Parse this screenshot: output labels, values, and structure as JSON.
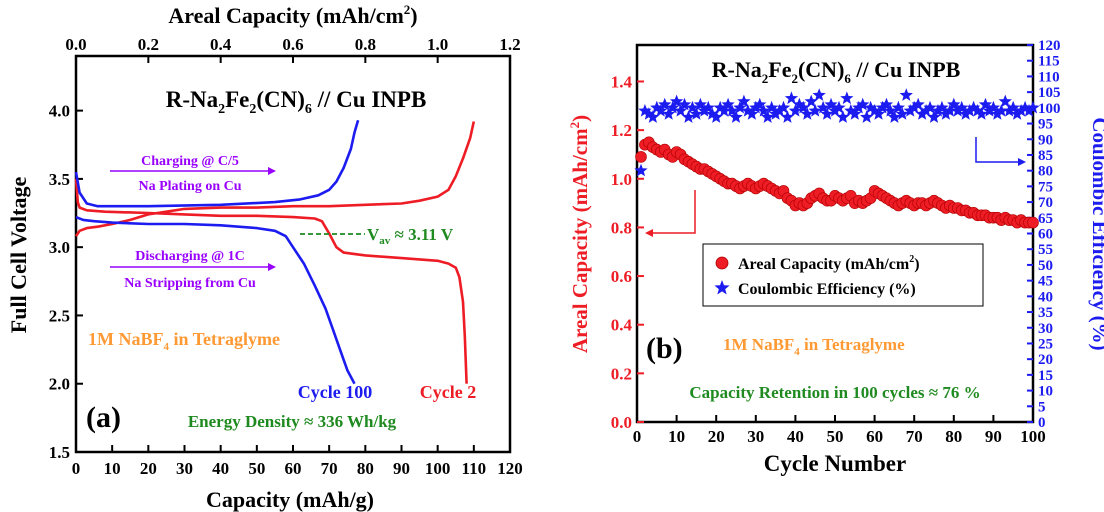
{
  "chart_data": [
    {
      "panel": "(a)",
      "type": "line",
      "title": "R-Na2Fe2(CN)6 // Cu INPB",
      "xlabel": "Capacity (mAh/g)",
      "ylabel": "Full Cell Voltage",
      "x2label": "Areal Capacity (mAh/cm2)",
      "xlim": [
        0,
        120
      ],
      "ylim": [
        1.5,
        4.4
      ],
      "x2lim": [
        0,
        1.2
      ],
      "xticks": [
        0,
        10,
        20,
        30,
        40,
        50,
        60,
        70,
        80,
        90,
        100,
        110,
        120
      ],
      "yticks": [
        "1.5",
        "2.0",
        "2.5",
        "3.0",
        "3.5",
        "4.0"
      ],
      "x2ticks": [
        "0.0",
        "0.2",
        "0.4",
        "0.6",
        "0.8",
        "1.0",
        "1.2"
      ],
      "series": [
        {
          "name": "Cycle 2",
          "color": "#ee1c25",
          "segments": [
            [
              [
                0,
                3.08
              ],
              [
                1,
                3.12
              ],
              [
                3,
                3.14
              ],
              [
                6,
                3.15
              ],
              [
                10,
                3.17
              ],
              [
                15,
                3.2
              ],
              [
                20,
                3.24
              ],
              [
                25,
                3.26
              ],
              [
                30,
                3.28
              ],
              [
                40,
                3.29
              ],
              [
                50,
                3.29
              ],
              [
                60,
                3.3
              ],
              [
                70,
                3.3
              ],
              [
                80,
                3.31
              ],
              [
                90,
                3.32
              ],
              [
                95,
                3.34
              ],
              [
                100,
                3.37
              ],
              [
                103,
                3.42
              ],
              [
                105,
                3.52
              ],
              [
                107,
                3.65
              ],
              [
                109,
                3.8
              ],
              [
                110,
                3.92
              ]
            ],
            [
              [
                0,
                3.5
              ],
              [
                0.5,
                3.33
              ],
              [
                1,
                3.29
              ],
              [
                3,
                3.27
              ],
              [
                8,
                3.26
              ],
              [
                20,
                3.25
              ],
              [
                30,
                3.24
              ],
              [
                40,
                3.23
              ],
              [
                50,
                3.23
              ],
              [
                60,
                3.22
              ],
              [
                66,
                3.21
              ],
              [
                68,
                3.19
              ],
              [
                70,
                3.1
              ],
              [
                72,
                3.0
              ],
              [
                74,
                2.96
              ],
              [
                80,
                2.94
              ],
              [
                90,
                2.92
              ],
              [
                100,
                2.9
              ],
              [
                103,
                2.88
              ],
              [
                105,
                2.85
              ],
              [
                106,
                2.78
              ],
              [
                107,
                2.6
              ],
              [
                107.5,
                2.35
              ],
              [
                108,
                2.0
              ]
            ]
          ]
        },
        {
          "name": "Cycle 100",
          "color": "#1c1cf0",
          "segments": [
            [
              [
                0,
                3.55
              ],
              [
                1,
                3.4
              ],
              [
                3,
                3.32
              ],
              [
                6,
                3.3
              ],
              [
                10,
                3.3
              ],
              [
                20,
                3.3
              ],
              [
                40,
                3.31
              ],
              [
                55,
                3.33
              ],
              [
                62,
                3.35
              ],
              [
                67,
                3.38
              ],
              [
                70,
                3.42
              ],
              [
                72,
                3.48
              ],
              [
                74,
                3.58
              ],
              [
                76,
                3.72
              ],
              [
                77,
                3.84
              ],
              [
                78,
                3.93
              ]
            ],
            [
              [
                0,
                3.22
              ],
              [
                2,
                3.2
              ],
              [
                5,
                3.19
              ],
              [
                10,
                3.18
              ],
              [
                20,
                3.17
              ],
              [
                30,
                3.17
              ],
              [
                40,
                3.16
              ],
              [
                50,
                3.14
              ],
              [
                55,
                3.12
              ],
              [
                58,
                3.08
              ],
              [
                60,
                3.0
              ],
              [
                63,
                2.88
              ],
              [
                66,
                2.72
              ],
              [
                69,
                2.55
              ],
              [
                71,
                2.4
              ],
              [
                73,
                2.25
              ],
              [
                75,
                2.1
              ],
              [
                77,
                2.0
              ]
            ]
          ]
        }
      ],
      "annotations": {
        "charging_line1": "Charging @ C/5",
        "charging_line2": "Na Plating on Cu",
        "discharging_line1": "Discharging @ 1C",
        "discharging_line2": "Na Stripping from Cu",
        "vav_label": "V",
        "vav_sub": "av",
        "vav_value": " ≈ 3.11 V",
        "electrolyte": "1M NaBF",
        "electrolyte_sub": "4",
        "electrolyte_rest": " in Tetraglyme",
        "cycle100_label": "Cycle 100",
        "cycle2_label": "Cycle 2",
        "energy_density": "Energy Density ≈ 336 Wh/kg",
        "panel_label": "(a)"
      },
      "colors": {
        "annotation_purple": "#9900ff",
        "annotation_green": "#1f8a1f",
        "annotation_orange": "#ff9933"
      }
    },
    {
      "panel": "(b)",
      "type": "scatter",
      "title": "R-Na2Fe2(CN)6 // Cu INPB",
      "xlabel": "Cycle Number",
      "ylabel": "Areal Capacity (mAh/cm2)",
      "y2label": "Coulombic Efficiency (%)",
      "xlim": [
        0,
        100
      ],
      "ylim": [
        0,
        1.55
      ],
      "y2lim": [
        0,
        120
      ],
      "xticks": [
        0,
        10,
        20,
        30,
        40,
        50,
        60,
        70,
        80,
        90,
        100
      ],
      "yticks": [
        "0.0",
        "0.2",
        "0.4",
        "0.6",
        "0.8",
        "1.0",
        "1.2",
        "1.4"
      ],
      "y2ticks": [
        0,
        5,
        10,
        15,
        20,
        25,
        30,
        35,
        40,
        45,
        50,
        55,
        60,
        65,
        70,
        75,
        80,
        85,
        90,
        95,
        100,
        105,
        110,
        115,
        120
      ],
      "series": [
        {
          "name": "Areal Capacity (mAh/cm2)",
          "color": "#ee1c25",
          "marker": "circle",
          "x": [
            1,
            2,
            3,
            4,
            5,
            6,
            7,
            8,
            9,
            10,
            11,
            12,
            13,
            14,
            15,
            16,
            17,
            18,
            19,
            20,
            21,
            22,
            23,
            24,
            25,
            26,
            27,
            28,
            29,
            30,
            31,
            32,
            33,
            34,
            35,
            36,
            37,
            38,
            39,
            40,
            41,
            42,
            43,
            44,
            45,
            46,
            47,
            48,
            49,
            50,
            51,
            52,
            53,
            54,
            55,
            56,
            57,
            58,
            59,
            60,
            61,
            62,
            63,
            64,
            65,
            66,
            67,
            68,
            69,
            70,
            71,
            72,
            73,
            74,
            75,
            76,
            77,
            78,
            79,
            80,
            81,
            82,
            83,
            84,
            85,
            86,
            87,
            88,
            89,
            90,
            91,
            92,
            93,
            94,
            95,
            96,
            97,
            98,
            99,
            100
          ],
          "values": [
            1.09,
            1.14,
            1.15,
            1.13,
            1.12,
            1.11,
            1.12,
            1.1,
            1.09,
            1.11,
            1.1,
            1.08,
            1.07,
            1.06,
            1.05,
            1.04,
            1.04,
            1.03,
            1.02,
            1.01,
            1.0,
            0.99,
            0.98,
            0.98,
            0.97,
            0.96,
            0.97,
            0.98,
            0.97,
            0.96,
            0.97,
            0.98,
            0.97,
            0.96,
            0.95,
            0.94,
            0.95,
            0.92,
            0.91,
            0.89,
            0.9,
            0.89,
            0.9,
            0.92,
            0.93,
            0.94,
            0.92,
            0.91,
            0.91,
            0.93,
            0.92,
            0.91,
            0.92,
            0.93,
            0.9,
            0.91,
            0.9,
            0.91,
            0.92,
            0.95,
            0.94,
            0.93,
            0.92,
            0.91,
            0.9,
            0.89,
            0.9,
            0.91,
            0.9,
            0.89,
            0.9,
            0.9,
            0.89,
            0.9,
            0.91,
            0.9,
            0.89,
            0.88,
            0.89,
            0.88,
            0.88,
            0.87,
            0.87,
            0.86,
            0.86,
            0.85,
            0.85,
            0.85,
            0.84,
            0.84,
            0.84,
            0.83,
            0.84,
            0.83,
            0.83,
            0.82,
            0.83,
            0.82,
            0.82,
            0.82
          ]
        },
        {
          "name": "Coulombic Efficiency (%)",
          "color": "#1c1cf0",
          "marker": "star",
          "x": [
            1,
            2,
            3,
            4,
            5,
            6,
            7,
            8,
            9,
            10,
            11,
            12,
            13,
            14,
            15,
            16,
            17,
            18,
            19,
            20,
            21,
            22,
            23,
            24,
            25,
            26,
            27,
            28,
            29,
            30,
            31,
            32,
            33,
            34,
            35,
            36,
            37,
            38,
            39,
            40,
            41,
            42,
            43,
            44,
            45,
            46,
            47,
            48,
            49,
            50,
            51,
            52,
            53,
            54,
            55,
            56,
            57,
            58,
            59,
            60,
            61,
            62,
            63,
            64,
            65,
            66,
            67,
            68,
            69,
            70,
            71,
            72,
            73,
            74,
            75,
            76,
            77,
            78,
            79,
            80,
            81,
            82,
            83,
            84,
            85,
            86,
            87,
            88,
            89,
            90,
            91,
            92,
            93,
            94,
            95,
            96,
            97,
            98,
            99,
            100
          ],
          "values": [
            80,
            99,
            98,
            97,
            100,
            99,
            101,
            98,
            100,
            102,
            99,
            101,
            97,
            100,
            98,
            101,
            99,
            100,
            98,
            97,
            100,
            99,
            101,
            99,
            97,
            100,
            102,
            99,
            98,
            100,
            101,
            99,
            97,
            100,
            98,
            99,
            100,
            97,
            103,
            99,
            101,
            100,
            98,
            102,
            99,
            104,
            100,
            98,
            101,
            99,
            100,
            97,
            103,
            99,
            98,
            100,
            101,
            97,
            100,
            99,
            98,
            100,
            101,
            99,
            97,
            100,
            98,
            104,
            99,
            100,
            101,
            98,
            99,
            100,
            97,
            99,
            100,
            98,
            99,
            101,
            99,
            100,
            98,
            99,
            100,
            99,
            98,
            101,
            99,
            100,
            98,
            99,
            102,
            99,
            100,
            98,
            99,
            100,
            99,
            100
          ]
        }
      ],
      "annotations": {
        "legend_capacity": "Areal Capacity (mAh/cm",
        "legend_capacity_sup": "2",
        "legend_capacity_end": ")",
        "legend_ce": "Coulombic Efficiency (%)",
        "electrolyte": "1M NaBF",
        "electrolyte_sub": "4",
        "electrolyte_rest": " in Tetraglyme",
        "retention": "Capacity Retention in 100 cycles ≈ 76 %",
        "panel_label": "(b)"
      },
      "legend_position": "center"
    }
  ]
}
